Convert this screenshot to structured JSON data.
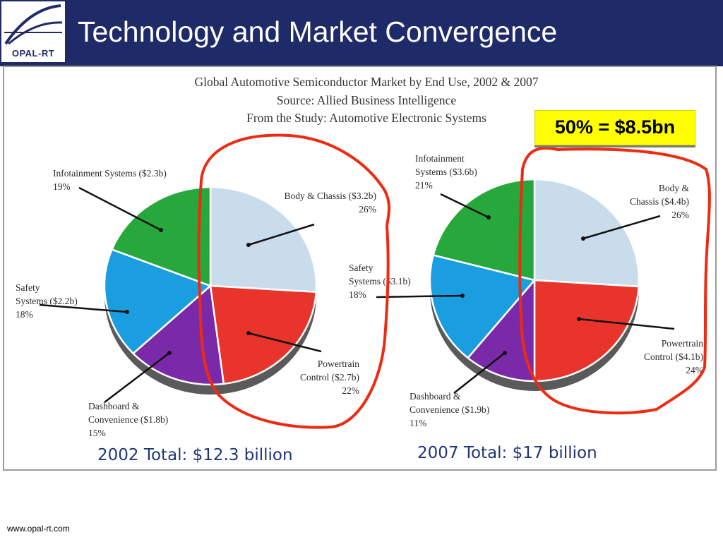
{
  "slide": {
    "title": "Technology and Market Convergence",
    "logo_text": "OPAL-RT",
    "footer_url": "www.opal-rt.com"
  },
  "source_block": {
    "line1": "Global Automotive Semiconductor Market by End Use, 2002 & 2007",
    "line2": "Source: Allied Business Intelligence",
    "line3": "From the Study: Automotive Electronic Systems"
  },
  "callout": {
    "text": "50% = $8.5bn",
    "color": "#ffff00"
  },
  "totals": {
    "t2002": "2002 Total: $12.3 billion",
    "t2007": "2007 Total: $17 billion"
  },
  "annotation_color": "#ee2a12",
  "chart_data": [
    {
      "type": "pie",
      "title": "2002 Total: $12.3 billion",
      "categories": [
        "Body & Chassis",
        "Powertrain Control",
        "Dashboard & Convenience",
        "Safety Systems",
        "Infotainment Systems"
      ],
      "values": [
        26,
        22,
        15,
        18,
        19
      ],
      "amounts_billion": [
        3.2,
        2.7,
        1.8,
        2.2,
        2.3
      ],
      "colors": [
        "#c9dcec",
        "#e8342a",
        "#7a2aa8",
        "#1a9ee0",
        "#26a83c"
      ],
      "labels": [
        {
          "line1": "Body & Chassis ($3.2b)",
          "line2": "26%"
        },
        {
          "line1": "Powertrain",
          "line2": "Control ($2.7b)",
          "line3": "22%"
        },
        {
          "line1": "Dashboard &",
          "line2": "Convenience ($1.8b)",
          "line3": "15%"
        },
        {
          "line1": "Safety",
          "line2": "Systems ($2.2b)",
          "line3": "18%"
        },
        {
          "line1": "Infotainment Systems ($2.3b)",
          "line2": "19%"
        }
      ]
    },
    {
      "type": "pie",
      "title": "2007 Total: $17 billion",
      "categories": [
        "Body & Chassis",
        "Powertrain Control",
        "Dashboard & Convenience",
        "Safety Systems",
        "Infotainment Systems"
      ],
      "values": [
        26,
        24,
        11,
        18,
        21
      ],
      "amounts_billion": [
        4.4,
        4.1,
        1.9,
        3.1,
        3.6
      ],
      "colors": [
        "#c9dcec",
        "#e8342a",
        "#7a2aa8",
        "#1a9ee0",
        "#26a83c"
      ],
      "labels": [
        {
          "line1": "Body &",
          "line2": "Chassis ($4.4b)",
          "line3": "26%"
        },
        {
          "line1": "Powertrain",
          "line2": "Control ($4.1b)",
          "line3": "24%"
        },
        {
          "line1": "Dashboard &",
          "line2": "Convenience ($1.9b)",
          "line3": "11%"
        },
        {
          "line1": "Safety",
          "line2": "Systems ($3.1b)",
          "line3": "18%"
        },
        {
          "line1": "Infotainment",
          "line2": "Systems ($3.6b)",
          "line3": "21%"
        }
      ]
    }
  ]
}
